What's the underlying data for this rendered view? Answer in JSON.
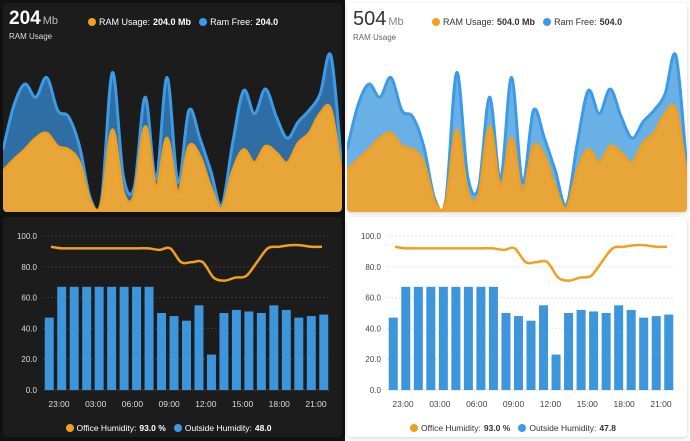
{
  "colors": {
    "orange": "#f0a020",
    "orange_area": "#e8a53a",
    "blue_dark_area": "#2e6ea5",
    "blue_light_area": "#68b0e6",
    "blue_line": "#3d9be6",
    "bar_blue": "#3d95dc"
  },
  "dark": {
    "ram_card": {
      "value": "204",
      "unit": "Mb",
      "subtitle": "RAM Usage",
      "legend": [
        {
          "label": "RAM Usage:",
          "value": "204.0 Mb",
          "color": "#f0a020"
        },
        {
          "label": "Ram Free:",
          "value": "204.0",
          "color": "#3d9be6"
        }
      ]
    },
    "humidity_card": {
      "legend": [
        {
          "label": "Office Humidity:",
          "value": "93.0 %",
          "color": "#f0a020"
        },
        {
          "label": "Outside Humidity:",
          "value": "48.0",
          "color": "#3d9be6"
        }
      ]
    }
  },
  "light": {
    "ram_card": {
      "value": "504",
      "unit": "Mb",
      "subtitle": "RAM Usage",
      "legend": [
        {
          "label": "RAM Usage:",
          "value": "504.0 Mb",
          "color": "#f0a020"
        },
        {
          "label": "Ram Free:",
          "value": "504.0",
          "color": "#3d9be6"
        }
      ]
    },
    "humidity_card": {
      "legend": [
        {
          "label": "Office Humidity:",
          "value": "93.0 %",
          "color": "#f0a020"
        },
        {
          "label": "Outside Humidity:",
          "value": "47.8",
          "color": "#3d9be6"
        }
      ]
    }
  },
  "chart_data": [
    {
      "type": "area",
      "series": [
        {
          "name": "RAM Usage",
          "values": [
            0.25,
            0.32,
            0.38,
            0.45,
            0.48,
            0.4,
            0.38,
            0.3,
            0.06,
            0.05,
            0.5,
            0.12,
            0.1,
            0.52,
            0.15,
            0.45,
            0.12,
            0.4,
            0.34,
            0.15,
            0.02,
            0.25,
            0.38,
            0.3,
            0.4,
            0.36,
            0.3,
            0.42,
            0.48,
            0.6,
            0.62,
            0.2
          ]
        },
        {
          "name": "Ram Free",
          "values": [
            0.38,
            0.65,
            0.78,
            0.7,
            0.82,
            0.62,
            0.58,
            0.4,
            0.08,
            0.07,
            0.85,
            0.22,
            0.15,
            0.7,
            0.2,
            0.82,
            0.18,
            0.62,
            0.45,
            0.25,
            0.04,
            0.42,
            0.74,
            0.6,
            0.75,
            0.58,
            0.45,
            0.55,
            0.62,
            0.72,
            0.95,
            0.25
          ]
        }
      ]
    },
    {
      "type": "bar",
      "x_tick_labels": [
        "23:00",
        "03:00",
        "06:00",
        "09:00",
        "12:00",
        "15:00",
        "18:00",
        "21:00"
      ],
      "y_tick_labels": [
        "100.0",
        "80.0",
        "60.0",
        "40.0",
        "20.0",
        "0.0"
      ],
      "ylim": [
        0,
        100
      ],
      "series": [
        {
          "name": "Office Humidity",
          "type": "line",
          "values": [
            93,
            92,
            92,
            92,
            92,
            92,
            92,
            92,
            92,
            92,
            91,
            92,
            83,
            83,
            83,
            73,
            71,
            73,
            74,
            83,
            92,
            93,
            94,
            94,
            93,
            93
          ]
        },
        {
          "name": "Outside Humidity",
          "type": "bar",
          "values": [
            47,
            67,
            67,
            67,
            67,
            67,
            67,
            67,
            67,
            50,
            48,
            45,
            55,
            23,
            50,
            52,
            51,
            50,
            55,
            52,
            47,
            48,
            49
          ]
        }
      ]
    }
  ]
}
